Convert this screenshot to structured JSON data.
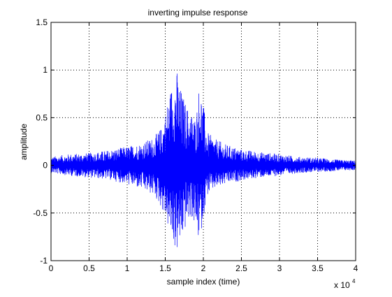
{
  "figure": {
    "background": "#ffffff",
    "axes_background": "#ffffff"
  },
  "chart_data": {
    "type": "line",
    "title": "inverting impulse response",
    "xlabel": "sample index (time)",
    "ylabel": "amplitude",
    "x_multiplier_label": "x 10",
    "x_multiplier_exponent": "4",
    "xlim": [
      0,
      4
    ],
    "ylim": [
      -1,
      1.5
    ],
    "xticks": [
      0,
      0.5,
      1,
      1.5,
      2,
      2.5,
      3,
      3.5,
      4
    ],
    "xtick_labels": [
      "0",
      "0.5",
      "1",
      "1.5",
      "2",
      "2.5",
      "3",
      "3.5",
      "4"
    ],
    "yticks": [
      -1,
      -0.5,
      0,
      0.5,
      1,
      1.5
    ],
    "ytick_labels": [
      "-1",
      "-0.5",
      "0",
      "0.5",
      "1",
      "1.5"
    ],
    "grid": true,
    "grid_style": "dotted",
    "series": [
      {
        "color": "#0000ff",
        "envelope": {
          "x": [
            0,
            0.25,
            0.5,
            0.75,
            1.0,
            1.2,
            1.35,
            1.45,
            1.5,
            1.55,
            1.6,
            1.65,
            1.7,
            1.75,
            1.8,
            1.85,
            1.9,
            1.95,
            2.0,
            2.05,
            2.15,
            2.3,
            2.5,
            2.75,
            3.0,
            3.25,
            3.5,
            3.75,
            4.0
          ],
          "upper": [
            0.09,
            0.12,
            0.13,
            0.16,
            0.2,
            0.24,
            0.3,
            0.4,
            0.55,
            0.75,
            0.9,
            1.02,
            0.82,
            0.7,
            0.6,
            0.55,
            0.5,
            0.88,
            0.65,
            0.35,
            0.28,
            0.22,
            0.17,
            0.14,
            0.12,
            0.09,
            0.08,
            0.06,
            0.05
          ],
          "lower": [
            -0.08,
            -0.11,
            -0.13,
            -0.15,
            -0.2,
            -0.26,
            -0.32,
            -0.45,
            -0.55,
            -0.7,
            -0.82,
            -0.93,
            -0.85,
            -0.7,
            -0.6,
            -0.55,
            -0.7,
            -0.82,
            -0.55,
            -0.32,
            -0.25,
            -0.2,
            -0.16,
            -0.13,
            -0.11,
            -0.08,
            -0.07,
            -0.06,
            -0.05
          ]
        }
      }
    ]
  }
}
